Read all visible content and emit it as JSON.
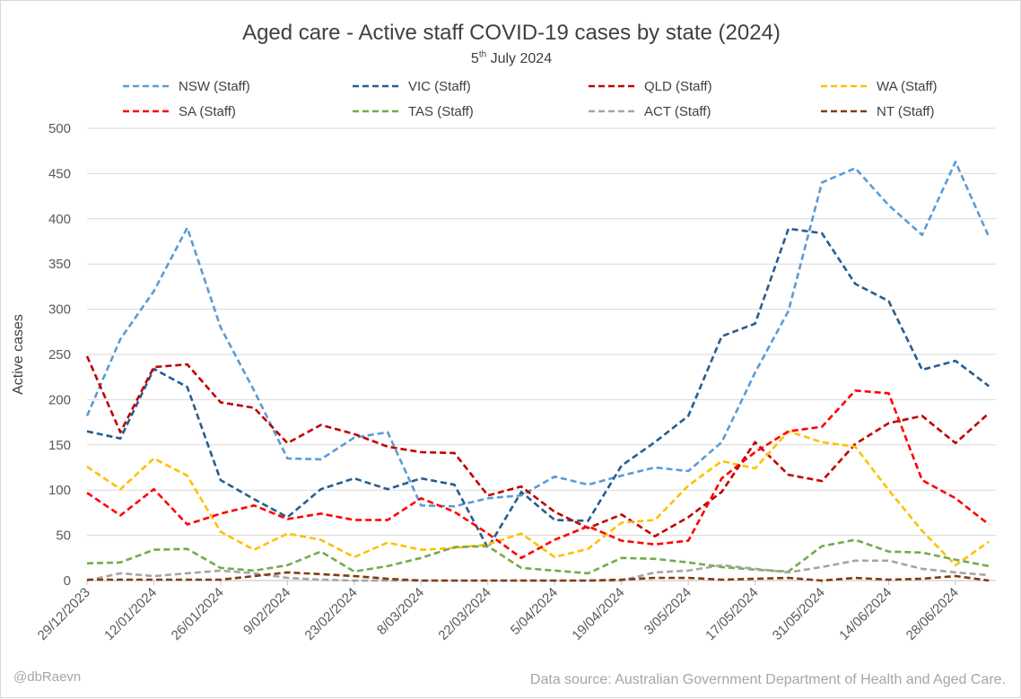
{
  "chart_data": {
    "type": "line",
    "title": "Aged care - Active staff COVID-19 cases by state (2024)",
    "subtitle_date": "5",
    "subtitle_suffix": "th",
    "subtitle_rest": " July 2024",
    "ylabel": "Active cases",
    "xlabel": "",
    "ylim": [
      0,
      500
    ],
    "yticks": [
      0,
      50,
      100,
      150,
      200,
      250,
      300,
      350,
      400,
      450,
      500
    ],
    "grid": true,
    "legend_position": "top",
    "x_tick_labels": [
      "29/12/2023",
      "12/01/2024",
      "26/01/2024",
      "9/02/2024",
      "23/02/2024",
      "8/03/2024",
      "22/03/2024",
      "5/04/2024",
      "19/04/2024",
      "3/05/2024",
      "17/05/2024",
      "31/05/2024",
      "14/06/2024",
      "28/06/2024"
    ],
    "series": [
      {
        "name": "NSW (Staff)",
        "color": "#5b9bd5",
        "values": [
          182,
          267,
          320,
          390,
          280,
          210,
          135,
          134,
          158,
          164,
          83,
          82,
          91,
          94,
          115,
          106,
          116,
          125,
          121,
          153,
          230,
          298,
          440,
          456,
          415,
          382,
          463,
          380
        ]
      },
      {
        "name": "VIC (Staff)",
        "color": "#255e91",
        "values": [
          165,
          157,
          234,
          214,
          111,
          90,
          70,
          101,
          113,
          101,
          113,
          106,
          36,
          98,
          67,
          66,
          127,
          153,
          182,
          270,
          284,
          389,
          384,
          328,
          309,
          233,
          243,
          215
        ]
      },
      {
        "name": "QLD (Staff)",
        "color": "#c00000",
        "values": [
          248,
          164,
          236,
          239,
          197,
          191,
          152,
          172,
          162,
          148,
          142,
          141,
          94,
          104,
          76,
          58,
          73,
          49,
          70,
          98,
          153,
          117,
          110,
          151,
          174,
          182,
          152,
          185
        ]
      },
      {
        "name": "WA (Staff)",
        "color": "#ffc000",
        "values": [
          126,
          101,
          135,
          116,
          54,
          34,
          52,
          45,
          26,
          42,
          34,
          36,
          40,
          52,
          26,
          35,
          64,
          67,
          105,
          132,
          124,
          165,
          153,
          148,
          100,
          55,
          17,
          43
        ]
      },
      {
        "name": "SA (Staff)",
        "color": "#ff0000",
        "values": [
          97,
          72,
          101,
          62,
          74,
          83,
          68,
          74,
          67,
          67,
          91,
          76,
          52,
          25,
          45,
          60,
          44,
          40,
          44,
          113,
          142,
          165,
          170,
          210,
          207,
          111,
          91,
          62
        ]
      },
      {
        "name": "TAS (Staff)",
        "color": "#70ad47",
        "values": [
          19,
          20,
          34,
          35,
          14,
          11,
          17,
          32,
          10,
          16,
          25,
          37,
          38,
          14,
          11,
          8,
          25,
          24,
          20,
          15,
          12,
          10,
          38,
          45,
          32,
          31,
          23,
          16
        ]
      },
      {
        "name": "ACT (Staff)",
        "color": "#a5a5a5",
        "values": [
          0,
          8,
          5,
          8,
          11,
          8,
          3,
          1,
          0,
          0,
          0,
          0,
          0,
          0,
          0,
          0,
          0,
          9,
          11,
          17,
          13,
          9,
          15,
          22,
          22,
          13,
          9,
          6
        ]
      },
      {
        "name": "NT (Staff)",
        "color": "#843c0c",
        "values": [
          1,
          1,
          1,
          1,
          1,
          5,
          9,
          7,
          5,
          2,
          0,
          0,
          0,
          0,
          0,
          0,
          1,
          3,
          3,
          1,
          2,
          3,
          0,
          3,
          1,
          2,
          5,
          0
        ]
      }
    ]
  },
  "footer": {
    "credit": "@dbRaevn",
    "source": "Data source: Australian Government Department of Health and Aged Care."
  }
}
